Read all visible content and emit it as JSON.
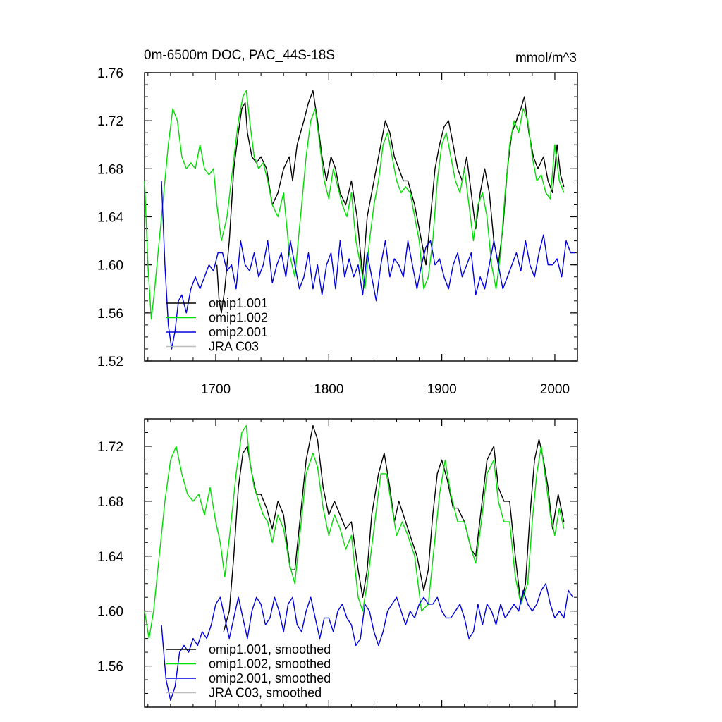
{
  "chart_data": [
    {
      "type": "line",
      "title": "0m-6500m DOC, PAC_44S-18S",
      "units": "mmol/m^3",
      "xlim": [
        1637,
        2020
      ],
      "ylim": [
        1.52,
        1.76
      ],
      "yticks": [
        "1.52",
        "1.56",
        "1.60",
        "1.64",
        "1.68",
        "1.72",
        "1.76"
      ],
      "xticks": [
        "1700",
        "1800",
        "1900",
        "2000"
      ],
      "legend": [
        "omip1.001",
        "omip1.002",
        "omip2.001",
        "JRA C03"
      ],
      "series": [
        {
          "name": "omip1.001",
          "color": "#000000",
          "x": [
            1701,
            1703,
            1705,
            1708,
            1712,
            1716,
            1720,
            1723,
            1726,
            1728,
            1732,
            1736,
            1740,
            1745,
            1750,
            1755,
            1760,
            1765,
            1768,
            1772,
            1778,
            1782,
            1786,
            1790,
            1794,
            1798,
            1802,
            1806,
            1810,
            1815,
            1820,
            1825,
            1830,
            1834,
            1838,
            1842,
            1846,
            1850,
            1854,
            1858,
            1862,
            1866,
            1870,
            1876,
            1882,
            1886,
            1890,
            1894,
            1898,
            1902,
            1906,
            1910,
            1914,
            1918,
            1922,
            1926,
            1930,
            1934,
            1938,
            1942,
            1946,
            1950,
            1954,
            1958,
            1962,
            1966,
            1970,
            1973,
            1977,
            1981,
            1985,
            1990,
            1994,
            1998,
            2002,
            2005,
            2008
          ],
          "y": [
            1.6,
            1.57,
            1.56,
            1.58,
            1.62,
            1.68,
            1.71,
            1.73,
            1.735,
            1.71,
            1.69,
            1.685,
            1.69,
            1.68,
            1.65,
            1.66,
            1.68,
            1.69,
            1.67,
            1.7,
            1.72,
            1.735,
            1.745,
            1.72,
            1.69,
            1.67,
            1.69,
            1.68,
            1.66,
            1.65,
            1.67,
            1.64,
            1.59,
            1.64,
            1.66,
            1.68,
            1.7,
            1.72,
            1.71,
            1.69,
            1.68,
            1.67,
            1.67,
            1.65,
            1.62,
            1.6,
            1.64,
            1.68,
            1.7,
            1.715,
            1.72,
            1.7,
            1.68,
            1.67,
            1.69,
            1.66,
            1.63,
            1.66,
            1.68,
            1.66,
            1.62,
            1.6,
            1.63,
            1.68,
            1.71,
            1.72,
            1.73,
            1.74,
            1.71,
            1.69,
            1.68,
            1.69,
            1.67,
            1.66,
            1.7,
            1.675,
            1.665
          ]
        },
        {
          "name": "omip1.002",
          "color": "#00dd00",
          "x": [
            1637,
            1640,
            1643,
            1646,
            1650,
            1654,
            1658,
            1662,
            1666,
            1670,
            1674,
            1678,
            1682,
            1686,
            1690,
            1694,
            1698,
            1701,
            1705,
            1710,
            1715,
            1720,
            1724,
            1727,
            1730,
            1734,
            1738,
            1742,
            1746,
            1750,
            1755,
            1760,
            1765,
            1770,
            1775,
            1780,
            1784,
            1788,
            1792,
            1796,
            1800,
            1804,
            1808,
            1812,
            1816,
            1820,
            1824,
            1828,
            1832,
            1836,
            1840,
            1844,
            1848,
            1852,
            1856,
            1860,
            1864,
            1868,
            1872,
            1876,
            1880,
            1884,
            1888,
            1892,
            1896,
            1900,
            1904,
            1908,
            1912,
            1916,
            1920,
            1924,
            1928,
            1932,
            1936,
            1940,
            1944,
            1948,
            1952,
            1956,
            1960,
            1964,
            1968,
            1972,
            1976,
            1980,
            1984,
            1988,
            1992,
            1996,
            2000,
            2004,
            2008
          ],
          "y": [
            1.67,
            1.6,
            1.555,
            1.58,
            1.62,
            1.66,
            1.7,
            1.73,
            1.72,
            1.69,
            1.68,
            1.685,
            1.68,
            1.7,
            1.68,
            1.675,
            1.68,
            1.65,
            1.62,
            1.64,
            1.68,
            1.72,
            1.74,
            1.745,
            1.72,
            1.69,
            1.68,
            1.685,
            1.67,
            1.65,
            1.64,
            1.66,
            1.61,
            1.59,
            1.64,
            1.69,
            1.72,
            1.73,
            1.7,
            1.67,
            1.655,
            1.68,
            1.665,
            1.65,
            1.64,
            1.66,
            1.62,
            1.6,
            1.58,
            1.62,
            1.65,
            1.67,
            1.7,
            1.71,
            1.69,
            1.67,
            1.66,
            1.665,
            1.66,
            1.64,
            1.62,
            1.58,
            1.59,
            1.62,
            1.67,
            1.7,
            1.71,
            1.69,
            1.67,
            1.66,
            1.68,
            1.65,
            1.62,
            1.65,
            1.66,
            1.64,
            1.6,
            1.58,
            1.61,
            1.66,
            1.7,
            1.72,
            1.71,
            1.73,
            1.72,
            1.69,
            1.67,
            1.675,
            1.66,
            1.655,
            1.7,
            1.67,
            1.66
          ]
        },
        {
          "name": "omip2.001",
          "color": "#0000dd",
          "x": [
            1652,
            1655,
            1658,
            1661,
            1664,
            1667,
            1670,
            1674,
            1678,
            1682,
            1686,
            1690,
            1694,
            1698,
            1702,
            1706,
            1710,
            1714,
            1718,
            1722,
            1726,
            1730,
            1734,
            1738,
            1742,
            1746,
            1750,
            1754,
            1758,
            1762,
            1766,
            1770,
            1774,
            1778,
            1782,
            1786,
            1790,
            1794,
            1798,
            1802,
            1806,
            1810,
            1814,
            1818,
            1822,
            1826,
            1830,
            1834,
            1838,
            1842,
            1846,
            1850,
            1854,
            1858,
            1862,
            1866,
            1870,
            1874,
            1878,
            1882,
            1886,
            1890,
            1894,
            1898,
            1902,
            1906,
            1910,
            1914,
            1918,
            1922,
            1926,
            1930,
            1934,
            1938,
            1942,
            1946,
            1950,
            1954,
            1958,
            1962,
            1966,
            1970,
            1974,
            1978,
            1982,
            1986,
            1990,
            1994,
            1998,
            2002,
            2006,
            2010,
            2014,
            2018
          ],
          "y": [
            1.67,
            1.6,
            1.55,
            1.53,
            1.545,
            1.57,
            1.575,
            1.56,
            1.58,
            1.59,
            1.58,
            1.59,
            1.6,
            1.595,
            1.61,
            1.61,
            1.595,
            1.6,
            1.58,
            1.62,
            1.6,
            1.595,
            1.61,
            1.59,
            1.6,
            1.62,
            1.585,
            1.6,
            1.61,
            1.59,
            1.62,
            1.6,
            1.58,
            1.59,
            1.61,
            1.58,
            1.6,
            1.575,
            1.6,
            1.61,
            1.58,
            1.62,
            1.59,
            1.605,
            1.59,
            1.6,
            1.575,
            1.61,
            1.59,
            1.57,
            1.6,
            1.62,
            1.59,
            1.605,
            1.6,
            1.59,
            1.62,
            1.6,
            1.58,
            1.6,
            1.615,
            1.62,
            1.6,
            1.605,
            1.59,
            1.58,
            1.6,
            1.61,
            1.59,
            1.6,
            1.61,
            1.575,
            1.59,
            1.58,
            1.6,
            1.62,
            1.6,
            1.58,
            1.59,
            1.6,
            1.61,
            1.595,
            1.62,
            1.6,
            1.59,
            1.61,
            1.625,
            1.6,
            1.6,
            1.605,
            1.59,
            1.62,
            1.61,
            1.61
          ]
        }
      ]
    },
    {
      "type": "line",
      "title": "",
      "xlim": [
        1637,
        2020
      ],
      "ylim": [
        1.53,
        1.74
      ],
      "yticks": [
        "1.56",
        "1.60",
        "1.64",
        "1.68",
        "1.72"
      ],
      "xticks": [],
      "legend": [
        "omip1.001, smoothed",
        "omip1.002, smoothed",
        "omip2.001, smoothed",
        "JRA C03, smoothed"
      ],
      "series": [
        {
          "name": "omip1.001, smoothed",
          "color": "#000000",
          "x": [
            1707,
            1712,
            1716,
            1720,
            1724,
            1728,
            1732,
            1736,
            1740,
            1745,
            1750,
            1755,
            1760,
            1766,
            1770,
            1775,
            1780,
            1786,
            1790,
            1795,
            1800,
            1805,
            1810,
            1815,
            1820,
            1826,
            1830,
            1834,
            1838,
            1844,
            1849,
            1854,
            1858,
            1862,
            1866,
            1872,
            1878,
            1884,
            1888,
            1892,
            1896,
            1900,
            1905,
            1910,
            1914,
            1920,
            1926,
            1930,
            1935,
            1940,
            1946,
            1950,
            1955,
            1960,
            1965,
            1970,
            1974,
            1978,
            1982,
            1986,
            1990,
            1994,
            1998,
            2003,
            2008
          ],
          "y": [
            1.585,
            1.6,
            1.64,
            1.69,
            1.715,
            1.72,
            1.7,
            1.685,
            1.685,
            1.675,
            1.66,
            1.68,
            1.67,
            1.63,
            1.63,
            1.67,
            1.71,
            1.735,
            1.725,
            1.69,
            1.67,
            1.68,
            1.67,
            1.66,
            1.665,
            1.63,
            1.61,
            1.63,
            1.67,
            1.7,
            1.715,
            1.69,
            1.665,
            1.68,
            1.67,
            1.655,
            1.64,
            1.615,
            1.63,
            1.67,
            1.7,
            1.71,
            1.695,
            1.675,
            1.675,
            1.665,
            1.645,
            1.64,
            1.675,
            1.71,
            1.72,
            1.69,
            1.68,
            1.68,
            1.64,
            1.605,
            1.62,
            1.67,
            1.71,
            1.725,
            1.71,
            1.69,
            1.66,
            1.685,
            1.665
          ]
        },
        {
          "name": "omip1.002, smoothed",
          "color": "#00dd00",
          "x": [
            1637,
            1641,
            1645,
            1650,
            1655,
            1660,
            1665,
            1670,
            1675,
            1680,
            1685,
            1690,
            1695,
            1700,
            1704,
            1708,
            1713,
            1718,
            1723,
            1727,
            1730,
            1734,
            1738,
            1742,
            1746,
            1750,
            1755,
            1760,
            1765,
            1770,
            1775,
            1780,
            1786,
            1790,
            1795,
            1800,
            1805,
            1810,
            1815,
            1820,
            1826,
            1830,
            1834,
            1840,
            1846,
            1851,
            1856,
            1860,
            1865,
            1870,
            1876,
            1882,
            1888,
            1893,
            1898,
            1903,
            1908,
            1914,
            1920,
            1926,
            1930,
            1935,
            1940,
            1946,
            1950,
            1955,
            1960,
            1965,
            1970,
            1976,
            1980,
            1984,
            1988,
            1992,
            1996,
            2000,
            2004,
            2008
          ],
          "y": [
            1.6,
            1.58,
            1.6,
            1.64,
            1.68,
            1.71,
            1.72,
            1.7,
            1.685,
            1.68,
            1.685,
            1.67,
            1.69,
            1.665,
            1.65,
            1.625,
            1.66,
            1.7,
            1.73,
            1.735,
            1.71,
            1.69,
            1.68,
            1.67,
            1.665,
            1.65,
            1.67,
            1.66,
            1.635,
            1.62,
            1.66,
            1.7,
            1.715,
            1.705,
            1.675,
            1.655,
            1.67,
            1.66,
            1.645,
            1.655,
            1.61,
            1.6,
            1.62,
            1.66,
            1.7,
            1.7,
            1.675,
            1.655,
            1.665,
            1.655,
            1.64,
            1.6,
            1.605,
            1.645,
            1.685,
            1.71,
            1.685,
            1.665,
            1.665,
            1.645,
            1.635,
            1.665,
            1.7,
            1.71,
            1.68,
            1.665,
            1.665,
            1.625,
            1.605,
            1.62,
            1.665,
            1.7,
            1.72,
            1.695,
            1.67,
            1.655,
            1.675,
            1.66
          ]
        },
        {
          "name": "omip2.001, smoothed",
          "color": "#0000dd",
          "x": [
            1652,
            1656,
            1660,
            1664,
            1668,
            1672,
            1676,
            1680,
            1684,
            1688,
            1692,
            1696,
            1700,
            1704,
            1708,
            1712,
            1716,
            1720,
            1724,
            1728,
            1732,
            1736,
            1740,
            1744,
            1748,
            1752,
            1756,
            1760,
            1764,
            1768,
            1772,
            1776,
            1780,
            1784,
            1788,
            1792,
            1796,
            1800,
            1804,
            1808,
            1812,
            1816,
            1820,
            1824,
            1828,
            1832,
            1836,
            1840,
            1844,
            1848,
            1852,
            1856,
            1860,
            1864,
            1868,
            1872,
            1876,
            1880,
            1884,
            1888,
            1892,
            1896,
            1900,
            1904,
            1908,
            1912,
            1916,
            1920,
            1924,
            1928,
            1932,
            1936,
            1940,
            1944,
            1948,
            1952,
            1956,
            1960,
            1964,
            1968,
            1972,
            1976,
            1980,
            1984,
            1988,
            1992,
            1996,
            2000,
            2004,
            2008,
            2012,
            2016
          ],
          "y": [
            1.59,
            1.55,
            1.535,
            1.545,
            1.57,
            1.575,
            1.57,
            1.58,
            1.575,
            1.585,
            1.58,
            1.59,
            1.605,
            1.61,
            1.595,
            1.58,
            1.595,
            1.61,
            1.595,
            1.58,
            1.6,
            1.61,
            1.605,
            1.59,
            1.595,
            1.61,
            1.6,
            1.585,
            1.605,
            1.61,
            1.59,
            1.585,
            1.6,
            1.61,
            1.595,
            1.58,
            1.595,
            1.595,
            1.585,
            1.6,
            1.605,
            1.595,
            1.59,
            1.575,
            1.58,
            1.605,
            1.6,
            1.585,
            1.575,
            1.585,
            1.6,
            1.605,
            1.61,
            1.6,
            1.59,
            1.6,
            1.595,
            1.605,
            1.61,
            1.605,
            1.605,
            1.61,
            1.6,
            1.595,
            1.595,
            1.6,
            1.605,
            1.595,
            1.58,
            1.585,
            1.605,
            1.59,
            1.605,
            1.6,
            1.59,
            1.605,
            1.595,
            1.6,
            1.605,
            1.6,
            1.615,
            1.605,
            1.6,
            1.605,
            1.615,
            1.62,
            1.605,
            1.595,
            1.6,
            1.595,
            1.615,
            1.61
          ]
        }
      ]
    }
  ]
}
